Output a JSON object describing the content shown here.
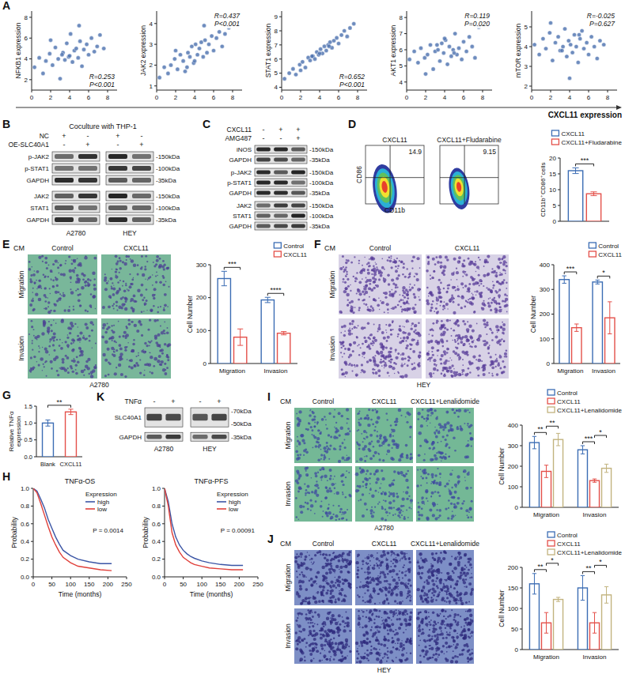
{
  "panel_letters": [
    "A",
    "B",
    "C",
    "D",
    "E",
    "F",
    "G",
    "K",
    "H",
    "I",
    "J"
  ],
  "panel_A": {
    "x_label": "CXCL11 expression"
  },
  "blot_B": {
    "header": "Coculture with THP-1",
    "conditions": [
      {
        "name": "NC",
        "signs": [
          "+",
          "-",
          "+",
          "-"
        ]
      },
      {
        "name": "OE-SLC40A1",
        "signs": [
          "-",
          "+",
          "-",
          "+"
        ]
      }
    ],
    "row_groups": [
      [
        {
          "name": "p-JAK2",
          "sizes": [
            "-150kDa"
          ]
        },
        {
          "name": "p-STAT1",
          "sizes": [
            "-100kDa"
          ]
        },
        {
          "name": "GAPDH",
          "sizes": [
            "-35kDa"
          ]
        }
      ],
      [
        {
          "name": "JAK2",
          "sizes": [
            "-150kDa"
          ]
        },
        {
          "name": "STAT1",
          "sizes": [
            "-100kDa"
          ]
        },
        {
          "name": "GAPDH",
          "sizes": [
            "-35kDa"
          ]
        }
      ]
    ],
    "cell_lines": [
      "A2780",
      "HEY"
    ]
  },
  "blot_C": {
    "conditions": [
      {
        "name": "CXCL11",
        "signs": [
          "-",
          "+",
          "+"
        ]
      },
      {
        "name": "AMG487",
        "signs": [
          "-",
          "-",
          "+"
        ]
      }
    ],
    "row_groups": [
      [
        {
          "name": "iNOS",
          "sizes": [
            "-150kDa"
          ]
        },
        {
          "name": "GAPDH",
          "sizes": [
            "-35kDa"
          ]
        }
      ],
      [
        {
          "name": "p-JAK2",
          "sizes": [
            "-150kDa"
          ]
        },
        {
          "name": "p-STAT1",
          "sizes": [
            "-100kDa"
          ]
        },
        {
          "name": "GAPDH",
          "sizes": [
            "-35kDa"
          ]
        }
      ],
      [
        {
          "name": "JAK2",
          "sizes": [
            "-150kDa"
          ]
        },
        {
          "name": "STAT1",
          "sizes": [
            "-100kDa"
          ]
        },
        {
          "name": "GAPDH",
          "sizes": [
            "-35kDa"
          ]
        }
      ]
    ]
  },
  "blot_K": {
    "conditions": [
      {
        "name": "TNFα",
        "signs": [
          "-",
          "+",
          "-",
          "+"
        ]
      }
    ],
    "row_groups": [
      [
        {
          "name": "SLC40A1",
          "sizes": [
            "-70kDa",
            "-50kDa"
          ]
        }
      ],
      [
        {
          "name": "GAPDH",
          "sizes": [
            "-35kDa"
          ]
        }
      ]
    ],
    "cell_lines": [
      "A2780",
      "HEY"
    ]
  },
  "flow_D": {
    "plots": [
      {
        "title": "CXCL11",
        "value": 14.9
      },
      {
        "title": "CXCL11+Fludarabine",
        "value": 9.15
      }
    ],
    "x_label": "CD11b",
    "y_label": "CD86"
  },
  "images_E": {
    "header": "CM",
    "columns": [
      "Control",
      "CXCL11"
    ],
    "rows": [
      "Migration",
      "Invasion"
    ],
    "cell_line": "A2780"
  },
  "images_F": {
    "header": "CM",
    "columns": [
      "Control",
      "CXCL11"
    ],
    "rows": [
      "Migration",
      "Invasion"
    ],
    "cell_line": "HEY"
  },
  "images_I": {
    "header": "CM",
    "columns": [
      "Control",
      "CXCL11",
      "CXCL11+Lenalidomide"
    ],
    "rows": [
      "Migration",
      "Invasion"
    ],
    "cell_line": "A2780"
  },
  "images_J": {
    "header": "CM",
    "columns": [
      "Control",
      "CXCL11",
      "CXCL11+Lenalidomide"
    ],
    "rows": [
      "Migration",
      "Invasion"
    ],
    "cell_line": "HEY"
  },
  "chart_data": [
    {
      "type": "scatter",
      "y_label": "NFKB1 expression",
      "annotation": [
        "R=0.253",
        "P<0.001"
      ],
      "xlim": [
        0,
        9
      ],
      "xticks": [
        0,
        2,
        4,
        6,
        8
      ],
      "ylim": [
        1,
        8.6
      ],
      "yticks": [
        2,
        4,
        6,
        8
      ],
      "color": "#4a6fae",
      "marker": "circle",
      "x": [
        0.3,
        0.8,
        1.2,
        1.5,
        1.9,
        2.2,
        2.5,
        2.8,
        3.0,
        3.3,
        3.5,
        3.7,
        3.9,
        4.1,
        4.3,
        4.5,
        4.7,
        4.9,
        5.1,
        5.3,
        5.5,
        5.8,
        6.0,
        6.3,
        6.6,
        6.9,
        7.2,
        7.6,
        2.0,
        4.0,
        5.0,
        3.2
      ],
      "values": [
        3.2,
        4.1,
        2.6,
        3.8,
        4.5,
        3.4,
        5.1,
        4.0,
        2.1,
        4.6,
        3.9,
        5.5,
        4.2,
        6.4,
        3.7,
        4.8,
        5.0,
        4.1,
        5.7,
        3.3,
        4.9,
        5.4,
        4.4,
        6.0,
        4.7,
        5.2,
        6.3,
        5.0,
        5.8,
        4.3,
        7.2,
        4.4
      ]
    },
    {
      "type": "scatter",
      "y_label": "JAK2 expression",
      "annotation": [
        "R=0.437",
        "P<0.001"
      ],
      "xlim": [
        0,
        9
      ],
      "xticks": [
        0,
        2,
        4,
        6,
        8
      ],
      "ylim": [
        0.8,
        4.6
      ],
      "yticks": [
        1,
        2,
        3,
        4
      ],
      "color": "#4a6fae",
      "marker": "circle",
      "x": [
        0.3,
        0.8,
        1.2,
        1.5,
        1.9,
        2.2,
        2.5,
        2.8,
        3.0,
        3.3,
        3.5,
        3.7,
        3.9,
        4.1,
        4.3,
        4.5,
        4.7,
        4.9,
        5.1,
        5.3,
        5.5,
        5.8,
        6.0,
        6.3,
        6.6,
        6.9,
        7.2,
        7.6,
        2.0,
        4.0,
        5.0,
        3.2
      ],
      "values": [
        1.4,
        1.9,
        1.6,
        2.0,
        2.3,
        1.8,
        2.5,
        2.2,
        1.7,
        2.6,
        2.4,
        2.9,
        2.1,
        3.0,
        2.5,
        2.8,
        3.1,
        2.4,
        3.2,
        2.6,
        3.0,
        3.4,
        2.7,
        3.3,
        3.6,
        2.9,
        3.5,
        3.8,
        2.7,
        2.2,
        3.9,
        1.9
      ]
    },
    {
      "type": "scatter",
      "y_label": "STAT1 expression",
      "annotation": [
        "R=0.652",
        "P<0.001"
      ],
      "xlim": [
        0,
        9
      ],
      "xticks": [
        0,
        2,
        4,
        6,
        8
      ],
      "ylim": [
        3.8,
        9.4
      ],
      "yticks": [
        4,
        5,
        6,
        7,
        8,
        9
      ],
      "color": "#4a6fae",
      "marker": "circle",
      "x": [
        0.3,
        0.8,
        1.2,
        1.5,
        1.9,
        2.2,
        2.5,
        2.8,
        3.0,
        3.3,
        3.5,
        3.7,
        3.9,
        4.1,
        4.3,
        4.5,
        4.7,
        4.9,
        5.1,
        5.3,
        5.5,
        5.8,
        6.0,
        6.3,
        6.6,
        6.9,
        7.2,
        7.6,
        2.0,
        4.0,
        5.0,
        3.2
      ],
      "values": [
        4.6,
        5.0,
        5.3,
        4.9,
        5.6,
        5.8,
        5.4,
        6.1,
        5.9,
        6.2,
        6.0,
        6.5,
        6.3,
        6.7,
        6.4,
        6.9,
        6.6,
        7.0,
        7.2,
        6.8,
        7.3,
        7.5,
        7.1,
        7.7,
        8.0,
        7.6,
        8.2,
        8.5,
        5.2,
        6.4,
        6.9,
        6.2
      ]
    },
    {
      "type": "scatter",
      "y_label": "AKT1 expression",
      "annotation": [
        "R=0.119",
        "P=0.020"
      ],
      "xlim": [
        0,
        9
      ],
      "xticks": [
        0,
        2,
        4,
        6,
        8
      ],
      "ylim": [
        3.5,
        8.4
      ],
      "yticks": [
        4,
        5,
        6,
        7,
        8
      ],
      "color": "#4a6fae",
      "marker": "circle",
      "x": [
        0.3,
        0.8,
        1.2,
        1.5,
        1.9,
        2.2,
        2.5,
        2.8,
        3.0,
        3.3,
        3.5,
        3.7,
        3.9,
        4.1,
        4.3,
        4.5,
        4.7,
        4.9,
        5.1,
        5.3,
        5.5,
        5.8,
        6.0,
        6.3,
        6.6,
        6.9,
        7.2,
        7.6,
        2.0,
        4.0,
        5.0,
        3.2
      ],
      "values": [
        5.4,
        5.9,
        5.2,
        6.1,
        5.5,
        5.7,
        6.3,
        4.8,
        5.9,
        6.0,
        5.3,
        6.4,
        5.8,
        6.6,
        5.1,
        6.2,
        5.6,
        6.0,
        7.0,
        5.7,
        6.1,
        5.4,
        6.5,
        5.9,
        6.8,
        6.2,
        5.5,
        7.4,
        4.5,
        6.7,
        5.8,
        6.3
      ]
    },
    {
      "type": "scatter",
      "y_label": "mTOR expression",
      "annotation": [
        "R=-0.025",
        "P=0.627"
      ],
      "xlim": [
        0,
        9
      ],
      "xticks": [
        0,
        2,
        4,
        6,
        8
      ],
      "ylim": [
        1.8,
        5.8
      ],
      "yticks": [
        2,
        3,
        4,
        5
      ],
      "color": "#4a6fae",
      "marker": "circle",
      "x": [
        0.3,
        0.8,
        1.2,
        1.5,
        1.9,
        2.2,
        2.5,
        2.8,
        3.0,
        3.3,
        3.5,
        3.7,
        3.9,
        4.1,
        4.3,
        4.5,
        4.7,
        4.9,
        5.1,
        5.3,
        5.5,
        5.8,
        6.0,
        6.3,
        6.6,
        6.9,
        7.2,
        7.6,
        2.0,
        4.0,
        5.0,
        3.2
      ],
      "values": [
        4.1,
        3.6,
        4.4,
        3.9,
        4.7,
        3.3,
        4.2,
        4.5,
        3.8,
        4.0,
        4.9,
        3.5,
        4.3,
        4.1,
        3.7,
        4.6,
        4.0,
        3.2,
        4.4,
        4.8,
        3.9,
        4.2,
        3.6,
        4.5,
        4.0,
        3.4,
        4.3,
        4.1,
        5.2,
        2.4,
        4.6,
        3.8
      ]
    },
    {
      "type": "bar",
      "categories": [
        null
      ],
      "y_label": "CD11b⁺CD86⁺cells",
      "ylim": [
        0,
        20
      ],
      "yticks": [
        0,
        5,
        10,
        15,
        20
      ],
      "legend": "top-right",
      "series": [
        {
          "name": "CXCL11",
          "color": "#3c6db4",
          "values": [
            16.0
          ],
          "errors": [
            0.9
          ]
        },
        {
          "name": "CXCL11+Fludarabine",
          "color": "#e4504a",
          "values": [
            8.7
          ],
          "errors": [
            0.6
          ]
        }
      ],
      "significance": [
        [
          "***"
        ]
      ]
    },
    {
      "type": "bar",
      "categories": [
        "Migration",
        "Invasion"
      ],
      "y_label": "Cell Number",
      "ylim": [
        0,
        300
      ],
      "yticks": [
        0,
        100,
        200,
        300
      ],
      "legend": "top-right",
      "series": [
        {
          "name": "Control",
          "color": "#3c6db4",
          "values": [
            258,
            193
          ],
          "errors": [
            22,
            8
          ]
        },
        {
          "name": "CXCL11",
          "color": "#e4504a",
          "values": [
            80,
            92
          ],
          "errors": [
            25,
            5
          ]
        }
      ],
      "significance": [
        [
          "***"
        ],
        [
          "****"
        ]
      ]
    },
    {
      "type": "bar",
      "categories": [
        "Migration",
        "Invasion"
      ],
      "y_label": "Cell Number",
      "ylim": [
        0,
        400
      ],
      "yticks": [
        0,
        100,
        200,
        300,
        400
      ],
      "legend": "top-right",
      "series": [
        {
          "name": "Control",
          "color": "#3c6db4",
          "values": [
            340,
            330
          ],
          "errors": [
            15,
            8
          ]
        },
        {
          "name": "CXCL11",
          "color": "#e4504a",
          "values": [
            145,
            185
          ],
          "errors": [
            15,
            65
          ]
        }
      ],
      "significance": [
        [
          "***"
        ],
        [
          "*"
        ]
      ]
    },
    {
      "type": "bar",
      "categories": [
        "Blank",
        "CXCL11"
      ],
      "y_label": "Relative TNFα expression",
      "ylim": [
        0,
        1.5
      ],
      "yticks": [
        {
          "value": 0,
          "label": "0.0"
        },
        0.5,
        {
          "value": 1,
          "label": "1.0"
        },
        1.5
      ],
      "values": [
        1.0,
        1.33
      ],
      "errors": [
        0.09,
        0.08
      ],
      "colors": [
        "#3c6db4",
        "#e4504a"
      ],
      "significance": [
        "**"
      ]
    },
    {
      "type": "line",
      "title": "TNFα-OS",
      "x_label": "Time (months)",
      "y_label": "Probability",
      "legend": "top-right",
      "legend_title": "Expression",
      "annotation": "P = 0.0014",
      "xlim": [
        0,
        250
      ],
      "xticks": [
        0,
        50,
        100,
        150,
        200,
        250
      ],
      "ylim": [
        0,
        1
      ],
      "yticks": [
        {
          "value": 0,
          "label": "0.0"
        },
        0.2,
        0.4,
        0.6,
        0.8,
        {
          "value": 1,
          "label": "1.0"
        }
      ],
      "x": [
        0,
        10,
        20,
        30,
        40,
        50,
        60,
        70,
        80,
        100,
        120,
        150,
        180,
        210
      ],
      "series": [
        {
          "name": "high",
          "color": "#3b55a5",
          "values": [
            1.0,
            0.97,
            0.88,
            0.78,
            0.65,
            0.55,
            0.45,
            0.37,
            0.3,
            0.24,
            0.2,
            0.17,
            0.15,
            0.15
          ]
        },
        {
          "name": "low",
          "color": "#e0403a",
          "values": [
            1.0,
            0.95,
            0.83,
            0.7,
            0.57,
            0.45,
            0.36,
            0.28,
            0.22,
            0.16,
            0.12,
            0.1,
            0.08,
            0.07
          ]
        }
      ]
    },
    {
      "type": "line",
      "title": "TNFα-PFS",
      "x_label": "Time (months)",
      "y_label": "Probability",
      "legend": "top-right",
      "legend_title": "Expression",
      "annotation": "P = 0.00091",
      "xlim": [
        0,
        250
      ],
      "xticks": [
        0,
        50,
        100,
        150,
        200,
        250
      ],
      "ylim": [
        0,
        1
      ],
      "yticks": [
        {
          "value": 0,
          "label": "0.0"
        },
        0.2,
        0.4,
        0.6,
        0.8,
        {
          "value": 1,
          "label": "1.0"
        }
      ],
      "x": [
        0,
        10,
        20,
        30,
        40,
        50,
        60,
        70,
        80,
        100,
        120,
        150,
        180,
        210
      ],
      "series": [
        {
          "name": "high",
          "color": "#3b55a5",
          "values": [
            1.0,
            0.85,
            0.6,
            0.45,
            0.36,
            0.3,
            0.26,
            0.23,
            0.21,
            0.18,
            0.16,
            0.14,
            0.13,
            0.13
          ]
        },
        {
          "name": "low",
          "color": "#e0403a",
          "values": [
            1.0,
            0.8,
            0.5,
            0.36,
            0.28,
            0.22,
            0.19,
            0.16,
            0.14,
            0.12,
            0.1,
            0.09,
            0.08,
            0.08
          ]
        }
      ]
    },
    {
      "type": "bar",
      "categories": [
        "Migration",
        "Invasion"
      ],
      "y_label": "Cell Number",
      "ylim": [
        0,
        400
      ],
      "yticks": [
        0,
        100,
        200,
        300,
        400
      ],
      "legend": "top-right",
      "series": [
        {
          "name": "Control",
          "color": "#3c6db4",
          "values": [
            315,
            280
          ],
          "errors": [
            30,
            20
          ]
        },
        {
          "name": "CXCL11",
          "color": "#e4504a",
          "values": [
            175,
            130
          ],
          "errors": [
            30,
            8
          ]
        },
        {
          "name": "CXCL11+Lenalidomide",
          "color": "#c2b37e",
          "values": [
            330,
            190
          ],
          "errors": [
            30,
            20
          ]
        }
      ],
      "significance": [
        [
          "**",
          "**"
        ],
        [
          "***",
          "*"
        ]
      ]
    },
    {
      "type": "bar",
      "categories": [
        "Migration",
        "Invasion"
      ],
      "y_label": "Cell Number",
      "ylim": [
        0,
        200
      ],
      "yticks": [
        0,
        50,
        100,
        150,
        200
      ],
      "legend": "top-right",
      "series": [
        {
          "name": "Control",
          "color": "#3c6db4",
          "values": [
            160,
            150
          ],
          "errors": [
            25,
            30
          ]
        },
        {
          "name": "CXCL11",
          "color": "#e4504a",
          "values": [
            65,
            65
          ],
          "errors": [
            25,
            25
          ]
        },
        {
          "name": "CXCL11+Lenalidomide",
          "color": "#c2b37e",
          "values": [
            122,
            133
          ],
          "errors": [
            5,
            20
          ]
        }
      ],
      "significance": [
        [
          "**",
          "*"
        ],
        [
          "**",
          "*"
        ]
      ]
    }
  ]
}
